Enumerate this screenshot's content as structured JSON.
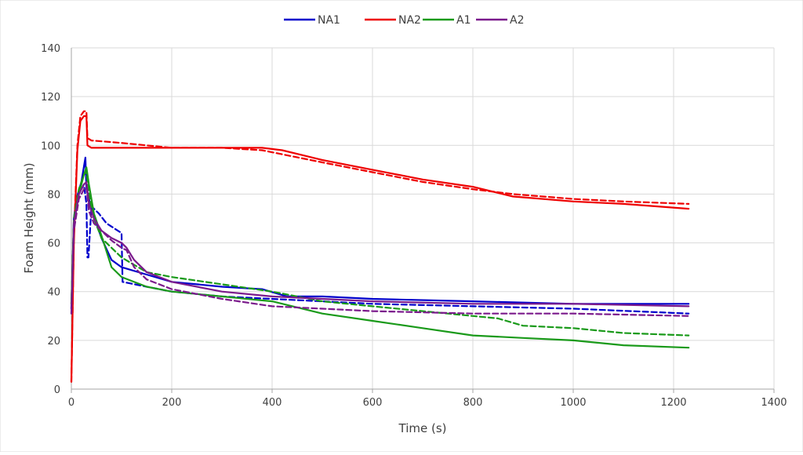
{
  "chart_data": {
    "type": "line",
    "xlabel": "Time (s)",
    "ylabel": "Foam Height (mm)",
    "xlim": [
      0,
      1400
    ],
    "ylim": [
      0,
      140
    ],
    "xticks": [
      0,
      200,
      400,
      600,
      800,
      1000,
      1200,
      1400
    ],
    "yticks": [
      0,
      20,
      40,
      60,
      80,
      100,
      120,
      140
    ],
    "grid": true,
    "legend_position": "top",
    "legend": [
      {
        "name": "NA1",
        "color": "#0000cc"
      },
      {
        "name": "NA2",
        "color": "#ee0000"
      },
      {
        "name": "A1",
        "color": "#1a9a1a"
      },
      {
        "name": "A2",
        "color": "#7b1a8c"
      }
    ],
    "series": [
      {
        "legend": "NA1",
        "color": "#0000cc",
        "style": "solid",
        "x": [
          0,
          5,
          10,
          20,
          28,
          30,
          40,
          60,
          80,
          100,
          150,
          200,
          300,
          380,
          430,
          500,
          600,
          800,
          1000,
          1230
        ],
        "y": [
          33,
          70,
          78,
          85,
          95,
          82,
          74,
          62,
          53,
          50,
          47,
          44,
          42,
          41,
          38,
          38,
          37,
          36,
          35,
          35
        ]
      },
      {
        "legend": "NA1",
        "color": "#0000cc",
        "style": "dashed",
        "x": [
          0,
          5,
          15,
          25,
          30,
          32,
          34,
          40,
          55,
          70,
          85,
          100,
          102,
          150,
          200,
          300,
          400,
          600,
          800,
          1000,
          1230
        ],
        "y": [
          33,
          68,
          80,
          84,
          76,
          54,
          54,
          75,
          72,
          68,
          66,
          64,
          44,
          42,
          40,
          38,
          37,
          35,
          34,
          33,
          31
        ]
      },
      {
        "legend": "NA2",
        "color": "#ee0000",
        "style": "solid",
        "x": [
          0,
          5,
          12,
          18,
          25,
          30,
          32,
          40,
          100,
          200,
          300,
          380,
          420,
          500,
          600,
          700,
          800,
          880,
          1000,
          1100,
          1230
        ],
        "y": [
          3,
          60,
          98,
          110,
          112,
          112,
          100,
          99,
          99,
          99,
          99,
          99,
          98,
          94,
          90,
          86,
          83,
          79,
          77,
          76,
          74
        ]
      },
      {
        "legend": "NA2",
        "color": "#ee0000",
        "style": "dashed",
        "x": [
          0,
          5,
          12,
          18,
          25,
          30,
          32,
          40,
          100,
          200,
          300,
          380,
          500,
          600,
          700,
          800,
          880,
          1000,
          1100,
          1230
        ],
        "y": [
          3,
          62,
          100,
          112,
          114,
          114,
          103,
          102,
          101,
          99,
          99,
          98,
          93,
          89,
          85,
          82,
          80,
          78,
          77,
          76
        ]
      },
      {
        "legend": "A1",
        "color": "#1a9a1a",
        "style": "solid",
        "x": [
          0,
          5,
          15,
          25,
          30,
          35,
          45,
          60,
          80,
          100,
          150,
          200,
          300,
          400,
          500,
          600,
          700,
          800,
          900,
          1000,
          1100,
          1230
        ],
        "y": [
          35,
          68,
          80,
          88,
          91,
          84,
          72,
          63,
          50,
          46,
          42,
          40,
          38,
          36,
          31,
          28,
          25,
          22,
          21,
          20,
          18,
          17
        ]
      },
      {
        "legend": "A1",
        "color": "#1a9a1a",
        "style": "dashed",
        "x": [
          0,
          5,
          15,
          25,
          30,
          35,
          45,
          60,
          80,
          100,
          150,
          200,
          300,
          400,
          500,
          600,
          700,
          800,
          850,
          900,
          1000,
          1100,
          1230
        ],
        "y": [
          35,
          70,
          82,
          88,
          89,
          80,
          70,
          62,
          58,
          54,
          48,
          46,
          43,
          40,
          36,
          34,
          32,
          30,
          29,
          26,
          25,
          23,
          22
        ]
      },
      {
        "legend": "A2",
        "color": "#7b1a8c",
        "style": "solid",
        "x": [
          0,
          5,
          15,
          25,
          30,
          35,
          45,
          60,
          80,
          100,
          110,
          125,
          150,
          200,
          300,
          400,
          500,
          600,
          800,
          1000,
          1230
        ],
        "y": [
          31,
          68,
          80,
          84,
          85,
          76,
          70,
          65,
          62,
          60,
          58,
          53,
          48,
          44,
          40,
          38,
          37,
          36,
          35,
          35,
          34
        ]
      },
      {
        "legend": "A2",
        "color": "#7b1a8c",
        "style": "dashed",
        "x": [
          0,
          5,
          15,
          25,
          30,
          35,
          45,
          60,
          80,
          100,
          110,
          125,
          150,
          200,
          300,
          400,
          500,
          600,
          800,
          1000,
          1230
        ],
        "y": [
          31,
          65,
          78,
          82,
          83,
          73,
          68,
          65,
          61,
          58,
          57,
          50,
          45,
          41,
          37,
          34,
          33,
          32,
          31,
          31,
          30
        ]
      }
    ]
  }
}
